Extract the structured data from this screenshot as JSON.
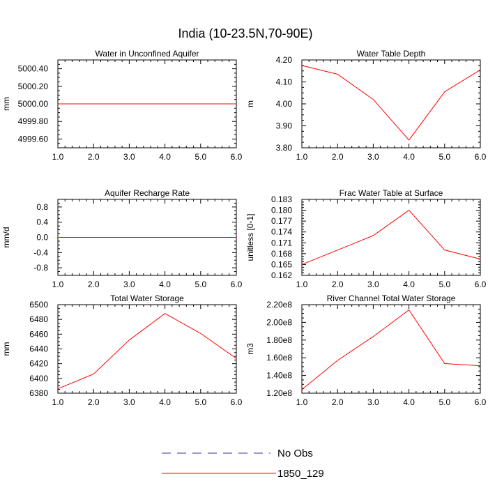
{
  "figure": {
    "title": "India (10-23.5N,70-90E)",
    "colors": {
      "model": "#ff0000",
      "obs": "#3333aa",
      "axis": "#000000"
    }
  },
  "legend": {
    "placement": "bottom-center",
    "entries": [
      {
        "label": "No Obs",
        "style": "dashed",
        "color": "#3333aa"
      },
      {
        "label": "1850_129",
        "style": "solid",
        "color": "#ff0000"
      }
    ]
  },
  "chart_data": [
    {
      "type": "line",
      "title": "Water in Unconfined Aquifer",
      "xlabel": "",
      "ylabel": "mm",
      "xlim": [
        1,
        6
      ],
      "ylim": [
        4999.5,
        5000.5
      ],
      "xticks": [
        1,
        2,
        3,
        4,
        5,
        6
      ],
      "xtick_labels": [
        "1.0",
        "2.0",
        "3.0",
        "4.0",
        "5.0",
        "6.0"
      ],
      "yticks": [
        4999.6,
        4999.8,
        5000.0,
        5000.2,
        5000.4
      ],
      "ytick_labels": [
        "4999.60",
        "4999.80",
        "5000.00",
        "5000.20",
        "5000.40"
      ],
      "series": [
        {
          "name": "1850_129",
          "x": [
            1,
            2,
            3,
            4,
            5,
            6
          ],
          "values": [
            5000,
            5000,
            5000,
            5000,
            5000,
            5000
          ]
        }
      ]
    },
    {
      "type": "line",
      "title": "Water Table Depth",
      "xlabel": "",
      "ylabel": "m",
      "xlim": [
        1,
        6
      ],
      "ylim": [
        3.8,
        4.2
      ],
      "xticks": [
        1,
        2,
        3,
        4,
        5,
        6
      ],
      "xtick_labels": [
        "1.0",
        "2.0",
        "3.0",
        "4.0",
        "5.0",
        "6.0"
      ],
      "yticks": [
        3.8,
        3.9,
        4.0,
        4.1,
        4.2
      ],
      "ytick_labels": [
        "3.80",
        "3.90",
        "4.00",
        "4.10",
        "4.20"
      ],
      "series": [
        {
          "name": "1850_129",
          "x": [
            1,
            2,
            3,
            4,
            5,
            6
          ],
          "values": [
            4.175,
            4.135,
            4.02,
            3.835,
            4.055,
            4.155
          ]
        }
      ]
    },
    {
      "type": "line",
      "title": "Aquifer Recharge Rate",
      "xlabel": "",
      "ylabel": "mm/d",
      "xlim": [
        1,
        6
      ],
      "ylim": [
        -1,
        1
      ],
      "xticks": [
        1,
        2,
        3,
        4,
        5,
        6
      ],
      "xtick_labels": [
        "1.0",
        "2.0",
        "3.0",
        "4.0",
        "5.0",
        "6.0"
      ],
      "yticks": [
        -0.8,
        -0.4,
        0.0,
        0.4,
        0.8
      ],
      "ytick_labels": [
        "-0.8",
        "-0.4",
        "0.0",
        "0.4",
        "0.8"
      ],
      "series": [
        {
          "name": "1850_129",
          "x": [
            1,
            2,
            3,
            4,
            5,
            6
          ],
          "values": [
            0,
            0,
            0,
            0,
            0,
            0
          ]
        }
      ]
    },
    {
      "type": "line",
      "title": "Frac Water Table at Surface",
      "xlabel": "",
      "ylabel": "unitless [0-1]",
      "xlim": [
        1,
        6
      ],
      "ylim": [
        0.162,
        0.183
      ],
      "xticks": [
        1,
        2,
        3,
        4,
        5,
        6
      ],
      "xtick_labels": [
        "1.0",
        "2.0",
        "3.0",
        "4.0",
        "5.0",
        "6.0"
      ],
      "yticks": [
        0.162,
        0.165,
        0.168,
        0.171,
        0.174,
        0.177,
        0.18,
        0.183
      ],
      "ytick_labels": [
        "0.162",
        "0.165",
        "0.168",
        "0.171",
        "0.174",
        "0.177",
        "0.180",
        "0.183"
      ],
      "series": [
        {
          "name": "1850_129",
          "x": [
            1,
            2,
            3,
            4,
            5,
            6
          ],
          "values": [
            0.165,
            0.169,
            0.173,
            0.18,
            0.169,
            0.1665
          ]
        }
      ]
    },
    {
      "type": "line",
      "title": "Total Water Storage",
      "xlabel": "",
      "ylabel": "mm",
      "xlim": [
        1,
        6
      ],
      "ylim": [
        6380,
        6500
      ],
      "xticks": [
        1,
        2,
        3,
        4,
        5,
        6
      ],
      "xtick_labels": [
        "1.0",
        "2.0",
        "3.0",
        "4.0",
        "5.0",
        "6.0"
      ],
      "yticks": [
        6380,
        6400,
        6420,
        6440,
        6460,
        6480,
        6500
      ],
      "ytick_labels": [
        "6380",
        "6400",
        "6420",
        "6440",
        "6460",
        "6480",
        "6500"
      ],
      "series": [
        {
          "name": "1850_129",
          "x": [
            1,
            2,
            3,
            4,
            5,
            6
          ],
          "values": [
            6386,
            6406,
            6452,
            6488,
            6461,
            6427
          ]
        }
      ]
    },
    {
      "type": "line",
      "title": "River Channel Total Water Storage",
      "xlabel": "",
      "ylabel": "m3",
      "xlim": [
        1,
        6
      ],
      "ylim": [
        120000000,
        220000000
      ],
      "xticks": [
        1,
        2,
        3,
        4,
        5,
        6
      ],
      "xtick_labels": [
        "1.0",
        "2.0",
        "3.0",
        "4.0",
        "5.0",
        "6.0"
      ],
      "yticks": [
        120000000,
        140000000,
        160000000,
        180000000,
        200000000,
        220000000
      ],
      "ytick_labels": [
        "1.20e8",
        "1.40e8",
        "1.60e8",
        "1.80e8",
        "2.00e8",
        "2.20e8"
      ],
      "series": [
        {
          "name": "1850_129",
          "x": [
            1,
            2,
            3,
            4,
            5,
            6
          ],
          "values": [
            124000000,
            157000000,
            184000000,
            214000000,
            153500000,
            151000000
          ]
        }
      ]
    }
  ]
}
